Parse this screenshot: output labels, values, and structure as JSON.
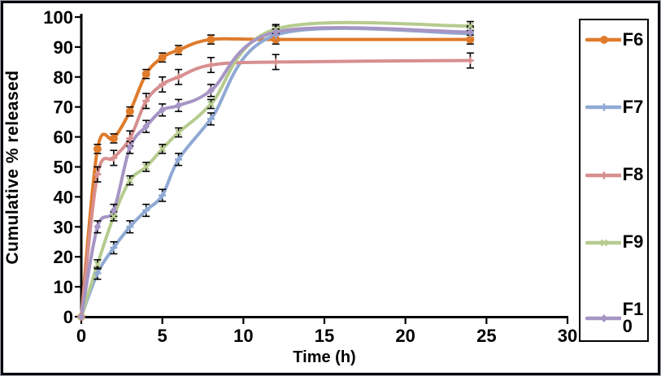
{
  "figure": {
    "background": "#ffffff",
    "frame_color": "#000000",
    "axis_color": "#000000"
  },
  "chart_data": {
    "type": "line",
    "title": "",
    "xlabel": "Time (h)",
    "ylabel": "Cumulative % released",
    "xlim": [
      0,
      30
    ],
    "ylim": [
      0,
      100
    ],
    "x_ticks": [
      0,
      5,
      10,
      15,
      20,
      25,
      30
    ],
    "y_ticks": [
      0,
      10,
      20,
      30,
      40,
      50,
      60,
      70,
      80,
      90,
      100
    ],
    "grid": false,
    "legend_position": "right",
    "error_bars": true,
    "smoothed_lines": true,
    "x": [
      0,
      1,
      2,
      3,
      4,
      5,
      6,
      8,
      12,
      24
    ],
    "series": [
      {
        "name": "F6",
        "color": "#df7b2b",
        "marker": "circle",
        "error": 1.5,
        "values": [
          0,
          56,
          59.5,
          68.5,
          81,
          86.5,
          89,
          92.5,
          92.5,
          92.5
        ]
      },
      {
        "name": "F7",
        "color": "#8fa9d3",
        "marker": "plus",
        "error": 2,
        "values": [
          0,
          14.5,
          23,
          30,
          35.5,
          40.5,
          52.5,
          66,
          94,
          94.5
        ]
      },
      {
        "name": "F8",
        "color": "#d78f8f",
        "marker": "plus",
        "error": 2.5,
        "values": [
          0,
          47.5,
          53,
          59.5,
          72,
          77.5,
          80,
          84,
          85,
          85.5
        ]
      },
      {
        "name": "F9",
        "color": "#b6cb8f",
        "marker": "x",
        "error": 1.5,
        "values": [
          0,
          17.5,
          33.5,
          45.5,
          50,
          56,
          61.5,
          71,
          96,
          97
        ]
      },
      {
        "name": "F10",
        "color": "#a695c4",
        "marker": "diamond",
        "error": 2,
        "values": [
          0,
          30,
          35.5,
          56.5,
          63.5,
          69,
          70.5,
          75.5,
          95,
          95
        ]
      }
    ]
  }
}
